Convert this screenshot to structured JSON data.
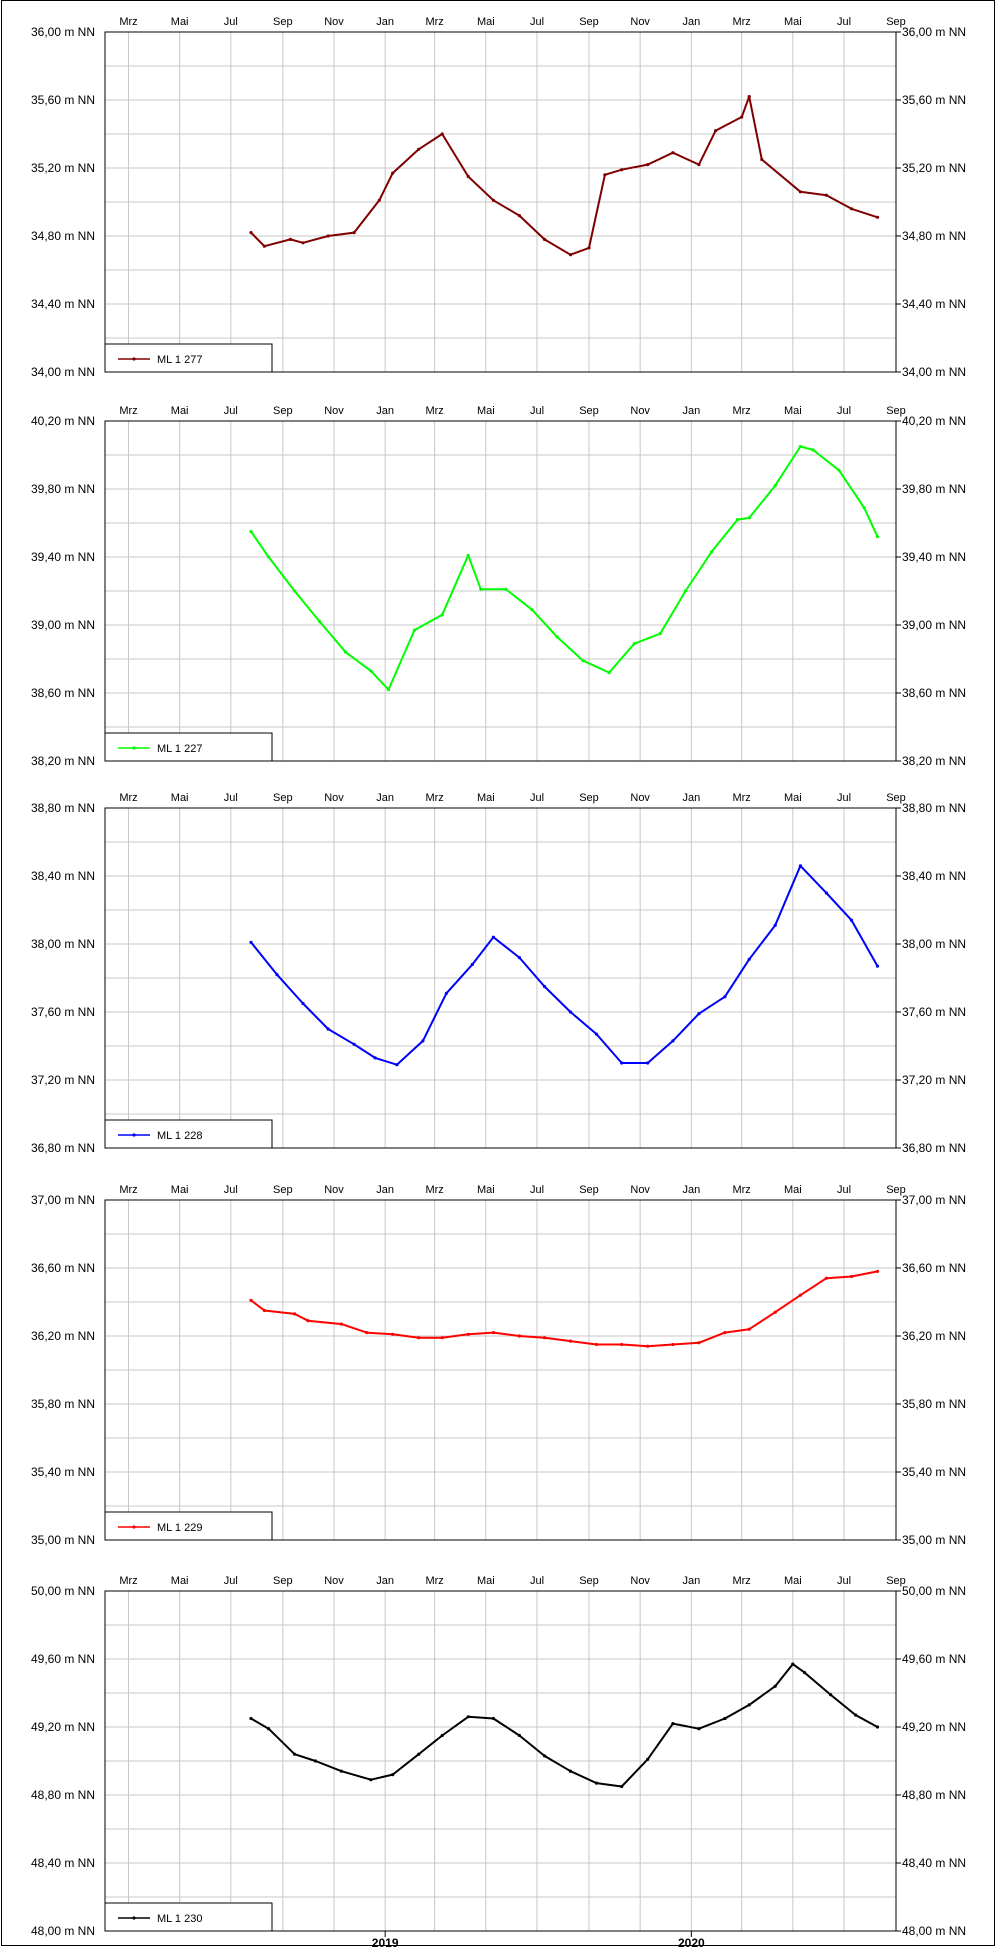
{
  "months_top": [
    "Mrz",
    "Mai",
    "Jul",
    "Sep",
    "Nov",
    "Jan",
    "Mrz",
    "Mai",
    "Jul",
    "Sep",
    "Nov",
    "Jan",
    "Mrz",
    "Mai",
    "Jul",
    "Sep"
  ],
  "years_bottom": [
    "2019",
    "2020"
  ],
  "chart_data": [
    {
      "type": "line",
      "series": [
        {
          "name": "ML 1 277",
          "color": "#800000",
          "x": [
            "2018-07-25",
            "2018-08-10",
            "2018-09-10",
            "2018-09-25",
            "2018-10-25",
            "2018-11-25",
            "2018-12-25",
            "2019-01-10",
            "2019-02-10",
            "2019-03-10",
            "2019-04-10",
            "2019-05-10",
            "2019-06-10",
            "2019-07-10",
            "2019-08-10",
            "2019-09-01",
            "2019-09-20",
            "2019-10-10",
            "2019-11-10",
            "2019-12-10",
            "2020-01-10",
            "2020-01-30",
            "2020-03-01",
            "2020-03-10",
            "2020-03-25",
            "2020-05-10",
            "2020-06-10",
            "2020-07-10",
            "2020-08-10"
          ],
          "values": [
            34.82,
            34.74,
            34.78,
            34.76,
            34.8,
            34.82,
            35.01,
            35.17,
            35.31,
            35.4,
            35.15,
            35.01,
            34.92,
            34.78,
            34.69,
            34.73,
            35.16,
            35.19,
            35.22,
            35.29,
            35.22,
            35.42,
            35.5,
            35.62,
            35.25,
            35.06,
            35.04,
            34.96,
            34.91
          ]
        }
      ],
      "ylim": [
        34.0,
        36.0
      ],
      "yticks": [
        "34,00 m NN",
        "34,40 m NN",
        "34,80 m NN",
        "35,20 m NN",
        "35,60 m NN",
        "36,00 m NN"
      ],
      "xlim": [
        "2018-02-01",
        "2020-09-01"
      ],
      "grid": true,
      "legend": "bottom-left"
    },
    {
      "type": "line",
      "series": [
        {
          "name": "ML 1 227",
          "color": "#00ff00",
          "x": [
            "2018-07-25",
            "2018-08-15",
            "2018-09-15",
            "2018-10-15",
            "2018-11-15",
            "2018-12-15",
            "2019-01-05",
            "2019-02-05",
            "2019-03-10",
            "2019-04-10",
            "2019-04-25",
            "2019-05-25",
            "2019-06-25",
            "2019-07-25",
            "2019-08-25",
            "2019-09-25",
            "2019-10-25",
            "2019-11-25",
            "2019-12-25",
            "2020-01-25",
            "2020-02-25",
            "2020-03-10",
            "2020-04-10",
            "2020-05-10",
            "2020-05-25",
            "2020-06-25",
            "2020-07-25",
            "2020-08-10"
          ],
          "values": [
            39.55,
            39.4,
            39.2,
            39.02,
            38.84,
            38.73,
            38.62,
            38.97,
            39.06,
            39.41,
            39.21,
            39.21,
            39.09,
            38.93,
            38.79,
            38.72,
            38.89,
            38.95,
            39.2,
            39.43,
            39.62,
            39.63,
            39.82,
            40.05,
            40.03,
            39.91,
            39.69,
            39.52
          ]
        }
      ],
      "ylim": [
        38.2,
        40.2
      ],
      "yticks": [
        "38,20 m NN",
        "38,60 m NN",
        "39,00 m NN",
        "39,40 m NN",
        "39,80 m NN",
        "40,20 m NN"
      ],
      "xlim": [
        "2018-02-01",
        "2020-09-01"
      ],
      "grid": true,
      "legend": "bottom-left"
    },
    {
      "type": "line",
      "series": [
        {
          "name": "ML 1 228",
          "color": "#0000ff",
          "x": [
            "2018-07-25",
            "2018-08-25",
            "2018-09-25",
            "2018-10-25",
            "2018-11-25",
            "2018-12-20",
            "2019-01-15",
            "2019-02-15",
            "2019-03-15",
            "2019-04-15",
            "2019-05-10",
            "2019-06-10",
            "2019-07-10",
            "2019-08-10",
            "2019-09-10",
            "2019-10-10",
            "2019-11-10",
            "2019-12-10",
            "2020-01-10",
            "2020-02-10",
            "2020-03-10",
            "2020-04-10",
            "2020-05-10",
            "2020-06-10",
            "2020-07-10",
            "2020-08-10"
          ],
          "values": [
            38.01,
            37.82,
            37.65,
            37.5,
            37.41,
            37.33,
            37.29,
            37.43,
            37.71,
            37.88,
            38.04,
            37.92,
            37.75,
            37.6,
            37.47,
            37.3,
            37.3,
            37.43,
            37.59,
            37.69,
            37.91,
            38.11,
            38.46,
            38.3,
            38.14,
            37.87
          ]
        }
      ],
      "ylim": [
        36.8,
        38.8
      ],
      "yticks": [
        "36,80 m NN",
        "37,20 m NN",
        "37,60 m NN",
        "38,00 m NN",
        "38,40 m NN",
        "38,80 m NN"
      ],
      "xlim": [
        "2018-02-01",
        "2020-09-01"
      ],
      "grid": true,
      "legend": "bottom-left"
    },
    {
      "type": "line",
      "series": [
        {
          "name": "ML 1 229",
          "color": "#ff0000",
          "x": [
            "2018-07-25",
            "2018-08-10",
            "2018-09-15",
            "2018-10-01",
            "2018-11-10",
            "2018-12-10",
            "2019-01-10",
            "2019-02-10",
            "2019-03-10",
            "2019-04-10",
            "2019-05-10",
            "2019-06-10",
            "2019-07-10",
            "2019-08-10",
            "2019-09-10",
            "2019-10-10",
            "2019-11-10",
            "2019-12-10",
            "2020-01-10",
            "2020-02-10",
            "2020-03-10",
            "2020-04-10",
            "2020-05-10",
            "2020-06-10",
            "2020-07-10",
            "2020-08-10"
          ],
          "values": [
            36.41,
            36.35,
            36.33,
            36.29,
            36.27,
            36.22,
            36.21,
            36.19,
            36.19,
            36.21,
            36.22,
            36.2,
            36.19,
            36.17,
            36.15,
            36.15,
            36.14,
            36.15,
            36.16,
            36.22,
            36.24,
            36.34,
            36.44,
            36.54,
            36.55,
            36.58
          ]
        }
      ],
      "ylim": [
        35.0,
        37.0
      ],
      "yticks": [
        "35,00 m NN",
        "35,40 m NN",
        "35,80 m NN",
        "36,20 m NN",
        "36,60 m NN",
        "37,00 m NN"
      ],
      "xlim": [
        "2018-02-01",
        "2020-09-01"
      ],
      "grid": true,
      "legend": "bottom-left"
    },
    {
      "type": "line",
      "series": [
        {
          "name": "ML 1 230",
          "color": "#000000",
          "x": [
            "2018-07-25",
            "2018-08-15",
            "2018-09-15",
            "2018-10-10",
            "2018-11-10",
            "2018-12-15",
            "2019-01-10",
            "2019-02-10",
            "2019-03-10",
            "2019-04-10",
            "2019-05-10",
            "2019-06-10",
            "2019-07-10",
            "2019-08-10",
            "2019-09-10",
            "2019-10-10",
            "2019-11-10",
            "2019-12-10",
            "2020-01-10",
            "2020-02-10",
            "2020-03-10",
            "2020-04-10",
            "2020-05-01",
            "2020-05-15",
            "2020-06-15",
            "2020-07-15",
            "2020-08-10"
          ],
          "values": [
            49.25,
            49.19,
            49.04,
            49.0,
            48.94,
            48.89,
            48.92,
            49.04,
            49.15,
            49.26,
            49.25,
            49.15,
            49.03,
            48.94,
            48.87,
            48.85,
            49.01,
            49.22,
            49.19,
            49.25,
            49.33,
            49.44,
            49.57,
            49.52,
            49.39,
            49.27,
            49.2
          ]
        }
      ],
      "ylim": [
        48.0,
        50.0
      ],
      "yticks": [
        "48,00 m NN",
        "48,40 m NN",
        "48,80 m NN",
        "49,20 m NN",
        "49,60 m NN",
        "50,00 m NN"
      ],
      "xlim": [
        "2018-02-01",
        "2020-09-01"
      ],
      "grid": true,
      "legend": "bottom-left"
    }
  ]
}
